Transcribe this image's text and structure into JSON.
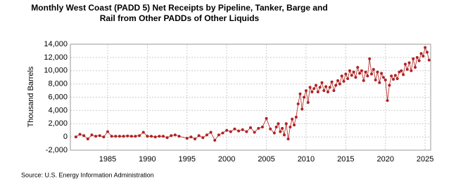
{
  "chart_data": {
    "type": "line",
    "title": "Monthly West Coast (PADD 5) Net Receipts by Pipeline, Tanker, Barge and Rail from Other PADDs of Other Liquids",
    "y_label": "Thousand Barrels",
    "source": "Source: U.S. Energy Information Administration",
    "x": [
      1981,
      1981.5,
      1982,
      1982.5,
      1983,
      1983.5,
      1984,
      1984.5,
      1985,
      1985.5,
      1986,
      1986.5,
      1987,
      1987.5,
      1988,
      1988.5,
      1989,
      1989.5,
      1990,
      1990.5,
      1991,
      1991.5,
      1992,
      1992.5,
      1993,
      1993.5,
      1994,
      1995,
      1995.5,
      1996,
      1996.5,
      1997,
      1997.5,
      1998,
      1998.5,
      1999,
      1999.5,
      2000,
      2000.5,
      2001,
      2001.5,
      2002,
      2002.5,
      2003,
      2003.5,
      2004,
      2004.5,
      2005,
      2005.5,
      2006,
      2006.25,
      2006.5,
      2006.75,
      2007,
      2007.25,
      2007.5,
      2007.75,
      2008,
      2008.25,
      2008.5,
      2008.75,
      2009,
      2009.25,
      2009.5,
      2009.75,
      2010,
      2010.25,
      2010.5,
      2010.75,
      2011,
      2011.25,
      2011.5,
      2011.75,
      2012,
      2012.25,
      2012.5,
      2012.75,
      2013,
      2013.25,
      2013.5,
      2013.75,
      2014,
      2014.25,
      2014.5,
      2014.75,
      2015,
      2015.25,
      2015.5,
      2015.75,
      2016,
      2016.25,
      2016.5,
      2016.75,
      2017,
      2017.25,
      2017.5,
      2017.75,
      2018,
      2018.25,
      2018.5,
      2018.75,
      2019,
      2019.25,
      2019.5,
      2019.75,
      2020,
      2020.25,
      2020.5,
      2020.75,
      2021,
      2021.25,
      2021.5,
      2021.75,
      2022,
      2022.25,
      2022.5,
      2022.75,
      2023,
      2023.25,
      2023.5,
      2023.75,
      2024,
      2024.25,
      2024.5,
      2024.75,
      2025,
      2025.25,
      2025.5
    ],
    "series": [
      {
        "color": "#b22222",
        "values": [
          0,
          400,
          200,
          -300,
          300,
          100,
          200,
          0,
          800,
          100,
          100,
          100,
          100,
          150,
          100,
          100,
          200,
          700,
          100,
          100,
          0,
          100,
          100,
          -100,
          200,
          300,
          100,
          -200,
          0,
          -300,
          200,
          -100,
          300,
          700,
          -500,
          300,
          600,
          1000,
          800,
          1200,
          900,
          1100,
          800,
          1400,
          700,
          1300,
          1500,
          2800,
          1200,
          600,
          1500,
          2000,
          800,
          1300,
          300,
          2000,
          -300,
          1500,
          2700,
          1800,
          3000,
          5000,
          6500,
          4200,
          6000,
          7000,
          5200,
          7500,
          6800,
          7300,
          7800,
          6800,
          7500,
          8200,
          7000,
          7600,
          6800,
          7500,
          8300,
          7000,
          7800,
          8500,
          8000,
          9200,
          8400,
          9500,
          8800,
          10000,
          9300,
          9800,
          9000,
          10500,
          9600,
          10000,
          8500,
          9800,
          9200,
          11800,
          9500,
          10200,
          8600,
          9800,
          8200,
          9600,
          9000,
          8600,
          5500,
          7800,
          9200,
          8700,
          9300,
          8800,
          9800,
          10000,
          9400,
          11000,
          10200,
          11200,
          10000,
          11800,
          10500,
          12000,
          11500,
          12600,
          12200,
          13500,
          12800,
          11600
        ]
      }
    ],
    "xlim": [
      1980.3,
      2025.7
    ],
    "xticks": [
      1985,
      1990,
      1995,
      2000,
      2005,
      2010,
      2015,
      2020,
      2025
    ],
    "ylim": [
      -2000,
      14000
    ],
    "yticks": [
      {
        "value": -2000,
        "label": "-2,000"
      },
      0,
      {
        "value": 2000,
        "label": "2,000"
      },
      {
        "value": 4000,
        "label": "4,000"
      },
      {
        "value": 6000,
        "label": "6,000"
      },
      {
        "value": 8000,
        "label": "8,000"
      },
      {
        "value": 10000,
        "label": "10,000"
      },
      {
        "value": 12000,
        "label": "12,000"
      },
      {
        "value": 14000,
        "label": "14,000"
      }
    ],
    "grid": true
  }
}
